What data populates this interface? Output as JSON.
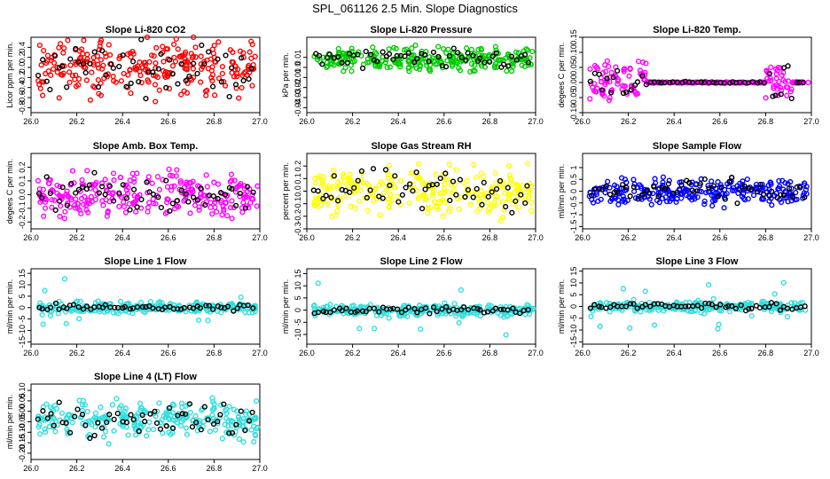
{
  "page_title": "SPL_061126  2.5 Min. Slope Diagnostics",
  "colors": {
    "overlay": "#000000"
  },
  "chart_data": [
    {
      "type": "scatter",
      "title": "Slope Li-820 CO2",
      "ylabel": "Licor ppm per min.",
      "color": "#ff0000",
      "xlim": [
        26.0,
        27.0
      ],
      "ylim": [
        -0.9,
        0.6
      ],
      "xticks": [
        "26.0",
        "26.2",
        "26.4",
        "26.6",
        "26.8",
        "27.0"
      ],
      "yticks": [
        -0.8,
        -0.6,
        -0.4,
        -0.2,
        0.0,
        0.2,
        0.4
      ],
      "ytick_labels": [
        "-0.8",
        "-0.6",
        "-0.4",
        "-0.2",
        "0.0",
        "0.2",
        "0.4"
      ],
      "spread": 0.3,
      "profile": "flat"
    },
    {
      "type": "scatter",
      "title": "Slope Li-820 Pressure",
      "ylabel": "kPa per min.",
      "color": "#00cc00",
      "xlim": [
        26.0,
        27.0
      ],
      "ylim": [
        -0.045,
        0.03
      ],
      "xticks": [
        "26.0",
        "26.2",
        "26.4",
        "26.6",
        "26.8",
        "27.0"
      ],
      "yticks": [
        -0.04,
        -0.03,
        -0.02,
        -0.01,
        0.0,
        0.01
      ],
      "ytick_labels": [
        "-0.04",
        "-0.03",
        "-0.02",
        "-0.01",
        "0.0",
        "0.01"
      ],
      "spread": 0.006,
      "offset": 0.008,
      "profile": "band"
    },
    {
      "type": "scatter",
      "title": "Slope Li-820 Temp.",
      "ylabel": "degees C per min.",
      "color": "#ff00ff",
      "xlim": [
        26.0,
        27.0
      ],
      "ylim": [
        -0.1,
        0.15
      ],
      "xticks": [
        "26.0",
        "26.2",
        "26.4",
        "26.6",
        "26.8",
        "27.0"
      ],
      "yticks": [
        -0.1,
        -0.05,
        0.0,
        0.05,
        0.1,
        0.15
      ],
      "ytick_labels": [
        "-0.10",
        "-0.05",
        "0.00",
        "0.05",
        "0.10",
        "0.15"
      ],
      "spread": 0.035,
      "profile": "edges"
    },
    {
      "type": "scatter",
      "title": "Slope Amb. Box Temp.",
      "ylabel": "degees C per min.",
      "color": "#ff00ff",
      "xlim": [
        26.0,
        27.0
      ],
      "ylim": [
        -0.25,
        0.3
      ],
      "xticks": [
        "26.0",
        "26.2",
        "26.4",
        "26.6",
        "26.8",
        "27.0"
      ],
      "yticks": [
        -0.2,
        -0.1,
        0.0,
        0.1,
        0.2
      ],
      "ytick_labels": [
        "-0.2",
        "-0.1",
        "0.0",
        "0.1",
        "0.2"
      ],
      "spread": 0.09,
      "profile": "flat"
    },
    {
      "type": "scatter",
      "title": "Slope Gas Stream RH",
      "ylabel": "percent per min.",
      "color": "#ffff00",
      "xlim": [
        26.0,
        27.0
      ],
      "ylim": [
        -0.3,
        0.3
      ],
      "xticks": [
        "26.0",
        "26.2",
        "26.4",
        "26.6",
        "26.8",
        "27.0"
      ],
      "yticks": [
        -0.3,
        -0.2,
        -0.1,
        0.0,
        0.1,
        0.2
      ],
      "ytick_labels": [
        "-0.3",
        "-0.2",
        "-0.1",
        "0.0",
        "0.1",
        "0.2"
      ],
      "spread": 0.1,
      "profile": "flat"
    },
    {
      "type": "scatter",
      "title": "Slope Sample Flow",
      "ylabel": "ml/min per min.",
      "color": "#0000ff",
      "xlim": [
        26.0,
        27.0
      ],
      "ylim": [
        -1.6,
        1.6
      ],
      "xticks": [
        "26.0",
        "26.2",
        "26.4",
        "26.6",
        "26.8",
        "27.0"
      ],
      "yticks": [
        -1.5,
        -1.0,
        -0.5,
        0.0,
        0.5,
        1.0
      ],
      "ytick_labels": [
        "-1.5",
        "-1",
        "-0.5",
        "0",
        "0.5",
        "1"
      ],
      "spread": 0.3,
      "profile": "flat"
    },
    {
      "type": "scatter",
      "title": "Slope Line 1 Flow",
      "ylabel": "ml/min per min.",
      "color": "#33dddd",
      "xlim": [
        26.0,
        27.0
      ],
      "ylim": [
        -16,
        17
      ],
      "xticks": [
        "26.0",
        "26.2",
        "26.4",
        "26.6",
        "26.8",
        "27.0"
      ],
      "yticks": [
        -15,
        -10,
        -5,
        0,
        5,
        10,
        15
      ],
      "ytick_labels": [
        "-15",
        "-10",
        "-5",
        "0",
        "5",
        "10",
        "15"
      ],
      "spread": 1.3,
      "profile": "spiky"
    },
    {
      "type": "scatter",
      "title": "Slope Line 2 Flow",
      "ylabel": "ml/min per min.",
      "color": "#33dddd",
      "xlim": [
        26.0,
        27.0
      ],
      "ylim": [
        -14,
        17
      ],
      "xticks": [
        "26.0",
        "26.2",
        "26.4",
        "26.6",
        "26.8",
        "27.0"
      ],
      "yticks": [
        -10,
        -5,
        0,
        5,
        10,
        15
      ],
      "ytick_labels": [
        "-10",
        "-5",
        "0",
        "5",
        "10",
        "15"
      ],
      "spread": 1.3,
      "profile": "spiky"
    },
    {
      "type": "scatter",
      "title": "Slope Line 3 Flow",
      "ylabel": "ml/min per min.",
      "color": "#33dddd",
      "xlim": [
        26.0,
        27.0
      ],
      "ylim": [
        -16,
        16
      ],
      "xticks": [
        "26.0",
        "26.2",
        "26.4",
        "26.6",
        "26.8",
        "27.0"
      ],
      "yticks": [
        -15,
        -10,
        -5,
        0,
        5,
        10,
        15
      ],
      "ytick_labels": [
        "-15",
        "-10",
        "-5",
        "0",
        "5",
        "10",
        "15"
      ],
      "spread": 1.3,
      "profile": "spiky"
    },
    {
      "type": "scatter",
      "title": "Slope Line 4 (LT) Flow",
      "ylabel": "ml/min per min.",
      "color": "#33dddd",
      "xlim": [
        26.0,
        27.0
      ],
      "ylim": [
        -0.23,
        0.13
      ],
      "xticks": [
        "26.0",
        "26.2",
        "26.4",
        "26.6",
        "26.8",
        "27.0"
      ],
      "yticks": [
        -0.2,
        -0.15,
        -0.1,
        -0.05,
        0.0,
        0.05,
        0.1
      ],
      "ytick_labels": [
        "-0.20",
        "-0.15",
        "-0.10",
        "-0.05",
        "0.00",
        "0.05",
        "0.10"
      ],
      "spread": 0.045,
      "offset": -0.04,
      "profile": "flat"
    }
  ]
}
